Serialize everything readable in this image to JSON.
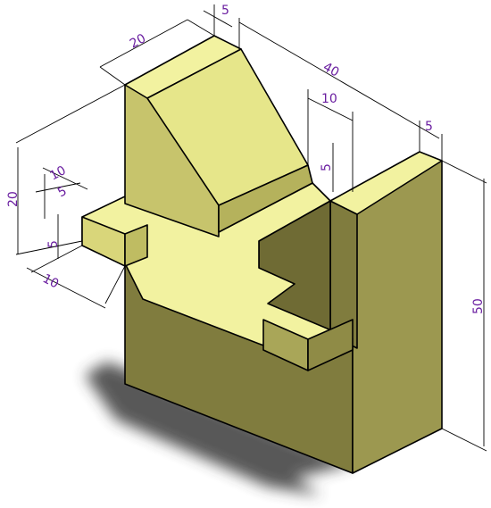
{
  "dimensions": {
    "top_width": "20",
    "top_offset": "5",
    "overall_length": "40",
    "slot_width": "10",
    "slot_depth": "5",
    "right_offset": "5",
    "height": "50",
    "left_height": "20",
    "tab_width": "10",
    "tab_offset": "5",
    "tab_height": "5",
    "tab_depth": "10"
  },
  "colors": {
    "face_top": "#f2f2a0",
    "face_light": "#e6e68a",
    "face_mid": "#c7c46c",
    "face_dark": "#807c3e",
    "face_shadowed": "#9c9850",
    "shadow": "#3a3a3a",
    "dimension_text": "#6a1ea0"
  }
}
